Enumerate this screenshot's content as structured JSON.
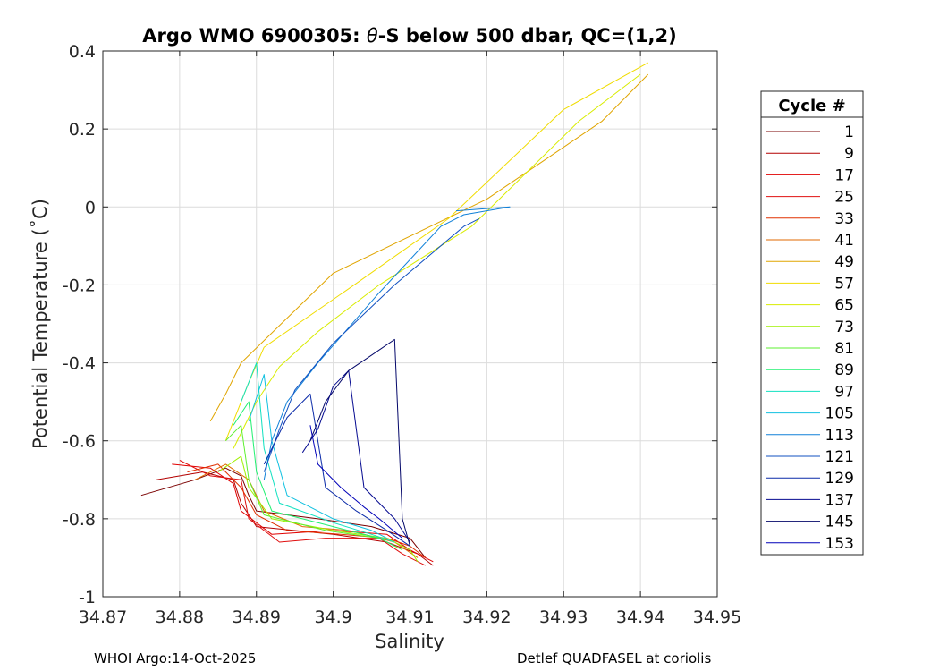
{
  "chart_data": {
    "type": "line",
    "title_prefix": "Argo WMO 6900305: ",
    "title_theta": "θ",
    "title_suffix": "-S below 500 dbar,  QC=(1,2)",
    "xlabel": "Salinity",
    "ylabel": "Potential Temperature (˚C)",
    "xlim": [
      34.87,
      34.95
    ],
    "ylim": [
      -1,
      0.4
    ],
    "grid": true,
    "x_ticks": [
      "34.87",
      "34.88",
      "34.89",
      "34.9",
      "34.91",
      "34.92",
      "34.93",
      "34.94",
      "34.95"
    ],
    "y_ticks": [
      "0.4",
      "0.2",
      "0",
      "-0.2",
      "-0.4",
      "-0.6",
      "-0.8",
      "-1"
    ],
    "legend": {
      "title": "Cycle #",
      "position": "right-outside",
      "entries": [
        "1",
        "9",
        "17",
        "25",
        "33",
        "41",
        "49",
        "57",
        "65",
        "73",
        "81",
        "89",
        "97",
        "105",
        "113",
        "121",
        "129",
        "137",
        "145",
        "153"
      ],
      "colors": [
        "#7a0000",
        "#b30000",
        "#e00000",
        "#e01010",
        "#e03000",
        "#e06a00",
        "#e0a500",
        "#f0dc00",
        "#d8ec00",
        "#9ff000",
        "#5ef030",
        "#20f070",
        "#10e0c0",
        "#10c0e0",
        "#1080d8",
        "#1050c0",
        "#0a2aa8",
        "#050a90",
        "#04086a",
        "#0000b8"
      ]
    },
    "series": [
      {
        "name": "cycle-1",
        "color": "#7a0000",
        "x": [
          34.875,
          34.882,
          34.886,
          34.888,
          34.889,
          34.89,
          34.898,
          34.905,
          34.91,
          34.912
        ],
        "y": [
          -0.74,
          -0.7,
          -0.67,
          -0.69,
          -0.74,
          -0.78,
          -0.8,
          -0.82,
          -0.85,
          -0.9
        ]
      },
      {
        "name": "cycle-9",
        "color": "#b30000",
        "x": [
          34.877,
          34.883,
          34.887,
          34.888,
          34.89,
          34.9,
          34.907,
          34.911,
          34.913
        ],
        "y": [
          -0.7,
          -0.68,
          -0.7,
          -0.76,
          -0.82,
          -0.84,
          -0.86,
          -0.89,
          -0.92
        ]
      },
      {
        "name": "cycle-17",
        "color": "#e00000",
        "x": [
          34.879,
          34.884,
          34.887,
          34.888,
          34.892,
          34.9,
          34.907,
          34.91,
          34.913
        ],
        "y": [
          -0.66,
          -0.67,
          -0.71,
          -0.78,
          -0.84,
          -0.83,
          -0.84,
          -0.88,
          -0.91
        ]
      },
      {
        "name": "cycle-25",
        "color": "#e01010",
        "x": [
          34.88,
          34.884,
          34.888,
          34.889,
          34.893,
          34.899,
          34.906,
          34.909,
          34.912
        ],
        "y": [
          -0.65,
          -0.69,
          -0.7,
          -0.8,
          -0.86,
          -0.85,
          -0.85,
          -0.89,
          -0.92
        ]
      },
      {
        "name": "cycle-33",
        "color": "#e03000",
        "x": [
          34.881,
          34.885,
          34.888,
          34.89,
          34.894,
          34.901,
          34.907,
          34.91,
          34.912
        ],
        "y": [
          -0.68,
          -0.66,
          -0.72,
          -0.79,
          -0.83,
          -0.84,
          -0.85,
          -0.87,
          -0.9
        ]
      },
      {
        "name": "cycle-41",
        "color": "#e06a00",
        "x": [
          34.882,
          34.886,
          34.889,
          34.891,
          34.896,
          34.902,
          34.908,
          34.911
        ],
        "y": [
          -0.7,
          -0.66,
          -0.7,
          -0.78,
          -0.82,
          -0.83,
          -0.86,
          -0.9
        ]
      },
      {
        "name": "cycle-49",
        "color": "#e0a500",
        "x": [
          34.884,
          34.886,
          34.888,
          34.9,
          34.92,
          34.935,
          34.941
        ],
        "y": [
          -0.55,
          -0.48,
          -0.4,
          -0.17,
          0.02,
          0.22,
          0.34
        ]
      },
      {
        "name": "cycle-57",
        "color": "#f0dc00",
        "x": [
          34.886,
          34.889,
          34.891,
          34.902,
          34.915,
          34.93,
          34.941
        ],
        "y": [
          -0.6,
          -0.45,
          -0.36,
          -0.21,
          -0.03,
          0.25,
          0.37
        ]
      },
      {
        "name": "cycle-65",
        "color": "#d8ec00",
        "x": [
          34.887,
          34.89,
          34.893,
          34.898,
          34.906,
          34.918,
          34.932,
          34.94
        ],
        "y": [
          -0.62,
          -0.5,
          -0.41,
          -0.32,
          -0.2,
          -0.05,
          0.22,
          0.34
        ]
      },
      {
        "name": "cycle-73",
        "color": "#9ff000",
        "x": [
          34.885,
          34.888,
          34.889,
          34.892,
          34.9,
          34.907,
          34.91,
          34.911
        ],
        "y": [
          -0.68,
          -0.64,
          -0.72,
          -0.8,
          -0.83,
          -0.85,
          -0.88,
          -0.91
        ]
      },
      {
        "name": "cycle-81",
        "color": "#5ef030",
        "x": [
          34.886,
          34.888,
          34.889,
          34.891,
          34.899,
          34.906,
          34.909
        ],
        "y": [
          -0.6,
          -0.56,
          -0.7,
          -0.79,
          -0.83,
          -0.85,
          -0.88
        ]
      },
      {
        "name": "cycle-89",
        "color": "#20f070",
        "x": [
          34.887,
          34.889,
          34.89,
          34.892,
          34.9,
          34.906,
          34.908
        ],
        "y": [
          -0.56,
          -0.5,
          -0.68,
          -0.78,
          -0.82,
          -0.85,
          -0.87
        ]
      },
      {
        "name": "cycle-97",
        "color": "#10e0c0",
        "x": [
          34.888,
          34.89,
          34.891,
          34.893,
          34.9,
          34.905,
          34.908
        ],
        "y": [
          -0.5,
          -0.4,
          -0.62,
          -0.76,
          -0.81,
          -0.84,
          -0.86
        ]
      },
      {
        "name": "cycle-105",
        "color": "#10c0e0",
        "x": [
          34.889,
          34.891,
          34.892,
          34.894,
          34.9,
          34.905,
          34.907
        ],
        "y": [
          -0.55,
          -0.43,
          -0.6,
          -0.74,
          -0.8,
          -0.83,
          -0.85
        ]
      },
      {
        "name": "cycle-113",
        "color": "#1080d8",
        "x": [
          34.891,
          34.892,
          34.894,
          34.898,
          34.906,
          34.914,
          34.917,
          34.923,
          34.916
        ],
        "y": [
          -0.7,
          -0.6,
          -0.5,
          -0.4,
          -0.22,
          -0.05,
          -0.02,
          0,
          -0.01
        ]
      },
      {
        "name": "cycle-121",
        "color": "#1050c0",
        "x": [
          34.891,
          34.893,
          34.895,
          34.9,
          34.908,
          34.917,
          34.919
        ],
        "y": [
          -0.68,
          -0.57,
          -0.47,
          -0.35,
          -0.2,
          -0.05,
          -0.03
        ]
      },
      {
        "name": "cycle-129",
        "color": "#0a2aa8",
        "x": [
          34.891,
          34.894,
          34.897,
          34.899,
          34.903,
          34.907,
          34.91
        ],
        "y": [
          -0.66,
          -0.54,
          -0.48,
          -0.72,
          -0.78,
          -0.83,
          -0.87
        ]
      },
      {
        "name": "cycle-137",
        "color": "#050a90",
        "x": [
          34.896,
          34.898,
          34.9,
          34.902,
          34.904,
          34.908,
          34.91
        ],
        "y": [
          -0.63,
          -0.57,
          -0.46,
          -0.42,
          -0.72,
          -0.8,
          -0.86
        ]
      },
      {
        "name": "cycle-145",
        "color": "#04086a",
        "x": [
          34.897,
          34.899,
          34.902,
          34.905,
          34.908,
          34.909,
          34.91
        ],
        "y": [
          -0.6,
          -0.5,
          -0.42,
          -0.38,
          -0.34,
          -0.8,
          -0.87
        ]
      },
      {
        "name": "cycle-153",
        "color": "#0000b8",
        "x": [
          34.897,
          34.898,
          34.901,
          34.904,
          34.906,
          34.909
        ],
        "y": [
          -0.56,
          -0.66,
          -0.72,
          -0.77,
          -0.8,
          -0.85
        ]
      }
    ]
  },
  "footer": {
    "left": "WHOI Argo:14-Oct-2025",
    "right": "Detlef QUADFASEL at coriolis"
  }
}
